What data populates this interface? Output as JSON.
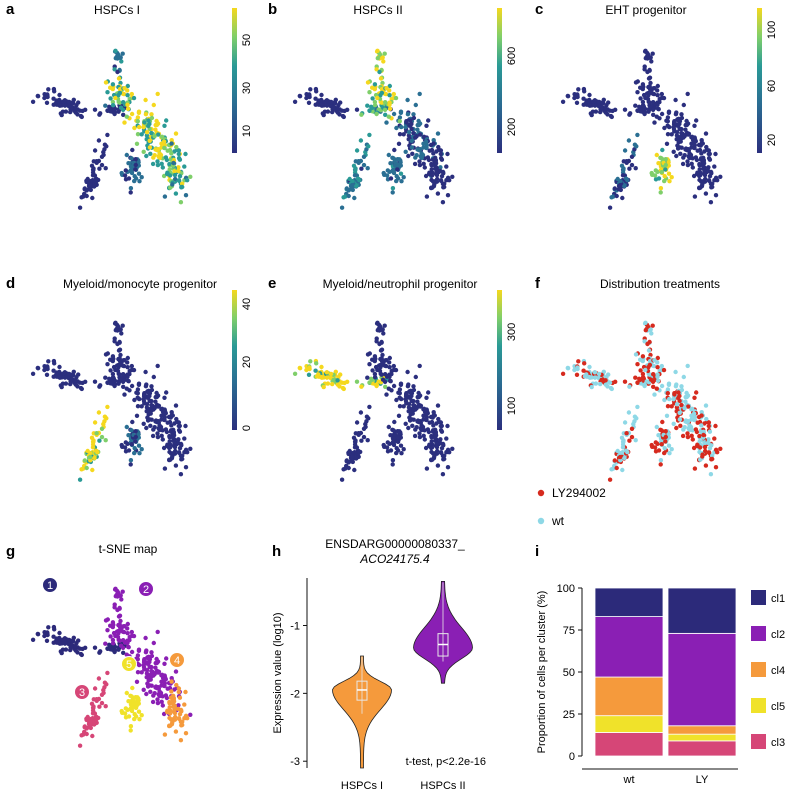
{
  "figure": {
    "panels": [
      {
        "letter": "a",
        "title": "HSPCs I",
        "colorbar_ticks": [
          "10",
          "30",
          "50"
        ]
      },
      {
        "letter": "b",
        "title": "HSPCs II",
        "colorbar_ticks": [
          "200",
          "600"
        ]
      },
      {
        "letter": "c",
        "title": "EHT progenitor",
        "colorbar_ticks": [
          "20",
          "60",
          "100"
        ]
      },
      {
        "letter": "d",
        "title": "Myeloid/monocyte progenitor",
        "colorbar_ticks": [
          "0",
          "20",
          "40"
        ]
      },
      {
        "letter": "e",
        "title": "Myeloid/neutrophil progenitor",
        "colorbar_ticks": [
          "100",
          "300"
        ]
      },
      {
        "letter": "f",
        "title": "Distribution treatments"
      },
      {
        "letter": "g",
        "title": "t-SNE map",
        "cluster_labels": [
          "1",
          "2",
          "3",
          "4",
          "5"
        ]
      },
      {
        "letter": "h",
        "title_line1": "ENSDARG00000080337_",
        "title_line2": "ACO24175.4"
      },
      {
        "letter": "i"
      }
    ],
    "legend_f": [
      {
        "label": "LY294002",
        "color": "#d62a1e"
      },
      {
        "label": "wt",
        "color": "#8ed8e6"
      }
    ],
    "legend_i": [
      {
        "label": "cl1",
        "color": "#2c2a7a"
      },
      {
        "label": "cl2",
        "color": "#8a1fb4"
      },
      {
        "label": "cl4",
        "color": "#f59a3c"
      },
      {
        "label": "cl5",
        "color": "#f0e22a"
      },
      {
        "label": "cl3",
        "color": "#d64677"
      }
    ],
    "colors": {
      "viridis_low": "#2b2f7e",
      "viridis_mid": "#2a9a96",
      "viridis_high": "#f5d81e",
      "cluster_colors": [
        "#2c2a7a",
        "#8a1fb4",
        "#d64677",
        "#f59a3c",
        "#f0e22a"
      ]
    }
  },
  "chart_data": [
    {
      "type": "violin",
      "title": "ENSDARG00000080337_ ACO24175.4",
      "ylabel": "Expression value (log10)",
      "categories": [
        "HSPCs I",
        "HSPCs II"
      ],
      "ylim": [
        -3.1,
        -0.3
      ],
      "yticks": [
        -3,
        -2,
        -1
      ],
      "ytick_labels": [
        "-3",
        "-2",
        "-1"
      ],
      "series": [
        {
          "name": "HSPCs I",
          "median": -1.95,
          "q1": -2.1,
          "q3": -1.82,
          "min": -3.1,
          "max": -1.45,
          "color": "#f59a3c"
        },
        {
          "name": "HSPCs II",
          "median": -1.28,
          "q1": -1.45,
          "q3": -1.12,
          "min": -1.85,
          "max": -0.35,
          "color": "#8a1fb4"
        }
      ],
      "annotation": "t-test, p<2.2e-16"
    },
    {
      "type": "bar",
      "stacked": true,
      "ylabel": "Proportion of cells per cluster (%)",
      "categories": [
        "wt",
        "LY"
      ],
      "ylim": [
        0,
        100
      ],
      "yticks": [
        0,
        25,
        50,
        75,
        100
      ],
      "series": [
        {
          "name": "cl3",
          "values": [
            14,
            9
          ]
        },
        {
          "name": "cl5",
          "values": [
            10,
            4
          ]
        },
        {
          "name": "cl4",
          "values": [
            23,
            5
          ]
        },
        {
          "name": "cl2",
          "values": [
            36,
            55
          ]
        },
        {
          "name": "cl1",
          "values": [
            17,
            27
          ]
        }
      ]
    }
  ]
}
